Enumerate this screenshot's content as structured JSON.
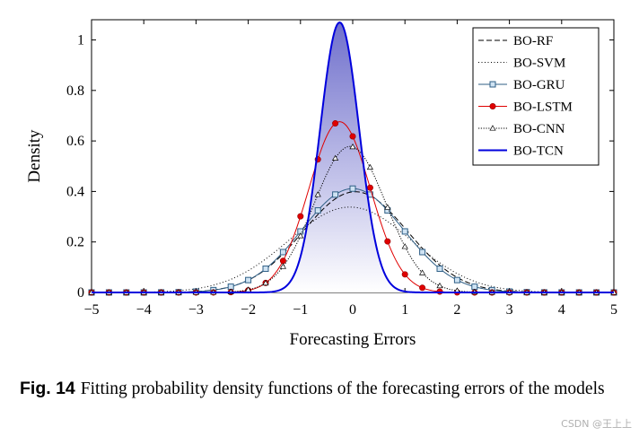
{
  "caption": {
    "label": "Fig. 14",
    "text": "Fitting probability density functions of the forecasting errors of the models"
  },
  "watermark": "CSDN @王上上",
  "chart_data": {
    "type": "line",
    "title": "",
    "xlabel": "Forecasting Errors",
    "ylabel": "Density",
    "xlim": [
      -5,
      5
    ],
    "ylim": [
      0,
      1.08
    ],
    "xticks": [
      "−5",
      "−4",
      "−3",
      "−2",
      "−1",
      "0",
      "1",
      "2",
      "3",
      "4",
      "5"
    ],
    "xtick_values": [
      -5,
      -4,
      -3,
      -2,
      -1,
      0,
      1,
      2,
      3,
      4,
      5
    ],
    "yticks": [
      "0",
      "0.2",
      "0.4",
      "0.6",
      "0.8",
      "1"
    ],
    "ytick_values": [
      0,
      0.2,
      0.4,
      0.6,
      0.8,
      1
    ],
    "legend_position": "top-right",
    "series": [
      {
        "name": "BO-RF",
        "mean": 0.05,
        "std": 1.0,
        "color": "#000000",
        "style": "dashed",
        "marker": "none"
      },
      {
        "name": "BO-SVM",
        "mean": -0.05,
        "std": 1.18,
        "color": "#000000",
        "style": "dotted",
        "marker": "none"
      },
      {
        "name": "BO-GRU",
        "mean": 0.0,
        "std": 0.97,
        "color": "#2f5f86",
        "style": "solid",
        "marker": "square"
      },
      {
        "name": "BO-LSTM",
        "mean": -0.25,
        "std": 0.59,
        "color": "#e00000",
        "style": "solid",
        "marker": "circle"
      },
      {
        "name": "BO-CNN",
        "mean": -0.05,
        "std": 0.69,
        "color": "#000000",
        "style": "densely-dotted",
        "marker": "triangle"
      },
      {
        "name": "BO-TCN",
        "mean": -0.25,
        "std": 0.373,
        "color": "#0000dd",
        "style": "solid",
        "marker": "none",
        "fill": true
      }
    ]
  }
}
